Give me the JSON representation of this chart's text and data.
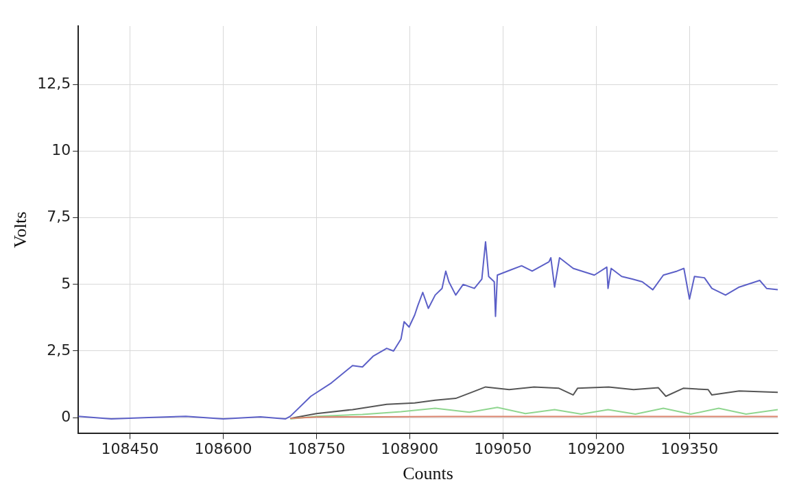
{
  "chart_data": {
    "type": "line",
    "xlabel": "Counts",
    "ylabel": "Volts",
    "xlim": [
      108367,
      109492
    ],
    "ylim": [
      -0.6,
      14.7
    ],
    "xticks": [
      108450,
      108600,
      108750,
      108900,
      109050,
      109200,
      109350
    ],
    "yticks": [
      0,
      {
        "value": 2.5,
        "label": "2,5"
      },
      5,
      {
        "value": 7.5,
        "label": "7,5"
      },
      10,
      {
        "value": 12.5,
        "label": "12,5"
      }
    ],
    "grid": true,
    "legend": false,
    "marker": "none",
    "line_style": "solid",
    "series": [
      {
        "color": "#d9826b",
        "x": [
          108708,
          108750,
          108850,
          108950,
          109050,
          109150,
          109250,
          109350,
          109492
        ],
        "values": [
          -0.03,
          0.02,
          0.03,
          0.04,
          0.04,
          0.04,
          0.04,
          0.04,
          0.04
        ]
      },
      {
        "color": "#8fd68f",
        "x": [
          108708,
          108750,
          108824,
          108886,
          108941,
          108996,
          109041,
          109086,
          109133,
          109176,
          109219,
          109263,
          109308,
          109352,
          109397,
          109441,
          109492
        ],
        "values": [
          -0.05,
          0.05,
          0.12,
          0.22,
          0.35,
          0.2,
          0.38,
          0.15,
          0.3,
          0.13,
          0.3,
          0.13,
          0.35,
          0.13,
          0.35,
          0.13,
          0.3
        ]
      },
      {
        "color": "#555555",
        "x": [
          108708,
          108750,
          108808,
          108863,
          108908,
          108941,
          108974,
          109000,
          109022,
          109060,
          109100,
          109140,
          109163,
          109170,
          109220,
          109260,
          109300,
          109312,
          109340,
          109380,
          109386,
          109430,
          109492
        ],
        "values": [
          -0.03,
          0.15,
          0.3,
          0.5,
          0.55,
          0.65,
          0.72,
          0.95,
          1.15,
          1.05,
          1.15,
          1.1,
          0.85,
          1.1,
          1.15,
          1.05,
          1.12,
          0.8,
          1.1,
          1.05,
          0.85,
          1.0,
          0.95
        ]
      },
      {
        "color": "#5b5fc7",
        "x": [
          108367,
          108420,
          108480,
          108540,
          108600,
          108660,
          108700,
          108708,
          108741,
          108774,
          108808,
          108824,
          108841,
          108863,
          108874,
          108886,
          108891,
          108899,
          108908,
          108913,
          108921,
          108930,
          108941,
          108952,
          108958,
          108963,
          108974,
          108986,
          109004,
          109016,
          109022,
          109027,
          109036,
          109038,
          109041,
          109063,
          109080,
          109097,
          109124,
          109127,
          109133,
          109141,
          109163,
          109197,
          109217,
          109219,
          109224,
          109241,
          109258,
          109274,
          109291,
          109308,
          109330,
          109341,
          109350,
          109358,
          109374,
          109386,
          109408,
          109430,
          109463,
          109474,
          109492
        ],
        "values": [
          0.05,
          -0.05,
          0,
          0.05,
          -0.05,
          0.03,
          -0.05,
          0.05,
          0.8,
          1.3,
          1.95,
          1.9,
          2.3,
          2.6,
          2.5,
          2.95,
          3.6,
          3.4,
          3.85,
          4.2,
          4.7,
          4.1,
          4.6,
          4.85,
          5.5,
          5.1,
          4.6,
          5.0,
          4.85,
          5.2,
          6.6,
          5.3,
          5.1,
          3.8,
          5.35,
          5.55,
          5.7,
          5.5,
          5.85,
          6.0,
          4.9,
          6.0,
          5.6,
          5.35,
          5.65,
          4.85,
          5.6,
          5.3,
          5.2,
          5.1,
          4.8,
          5.35,
          5.5,
          5.6,
          4.45,
          5.3,
          5.25,
          4.85,
          4.6,
          4.9,
          5.15,
          4.85,
          4.8
        ]
      }
    ]
  }
}
